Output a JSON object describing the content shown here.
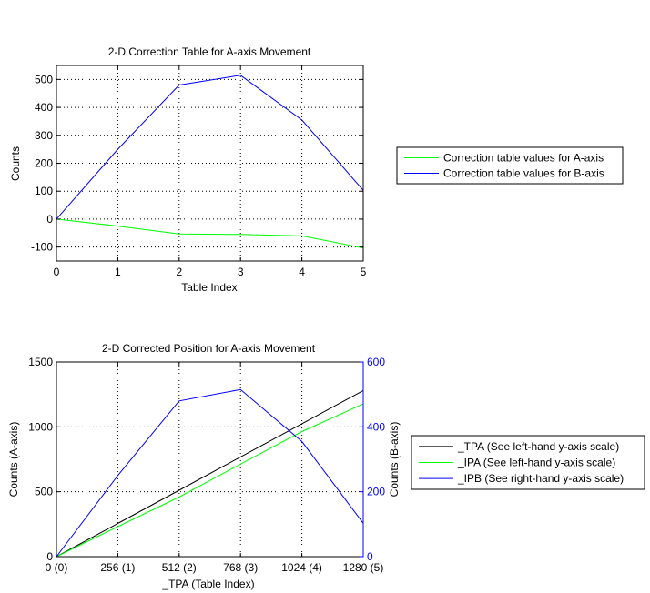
{
  "chart_data": [
    {
      "type": "line",
      "title": "2-D Correction Table for A-axis Movement",
      "xlabel": "Table Index",
      "ylabel": "Counts",
      "xlim": [
        0,
        5
      ],
      "ylim": [
        -150,
        550
      ],
      "grid": true,
      "x_ticks": [
        0,
        1,
        2,
        3,
        4,
        5
      ],
      "x_tick_labels": [
        "0",
        "1",
        "2",
        "3",
        "4",
        "5"
      ],
      "y_ticks": [
        -100,
        0,
        100,
        200,
        300,
        400,
        500
      ],
      "y_tick_labels": [
        "-100",
        "0",
        "100",
        "200",
        "300",
        "400",
        "500"
      ],
      "legend_position": "outside-right",
      "x": [
        0,
        1,
        2,
        3,
        4,
        5
      ],
      "series": [
        {
          "name": "Correction table values for A-axis",
          "color": "#00ff00",
          "values": [
            0,
            -25,
            -53,
            -55,
            -60,
            -103
          ]
        },
        {
          "name": "Correction table values for B-axis",
          "color": "#0000ff",
          "values": [
            0,
            250,
            480,
            515,
            355,
            103
          ]
        }
      ]
    },
    {
      "type": "line",
      "title": "2-D Corrected Position for A-axis Movement",
      "xlabel": "_TPA (Table Index)",
      "ylabel": "Counts (A-axis)",
      "y2label": "Counts (B-axis)",
      "xlim": [
        0,
        1280
      ],
      "ylim": [
        0,
        1500
      ],
      "y2lim": [
        0,
        600
      ],
      "grid": true,
      "x_ticks": [
        0,
        256,
        512,
        768,
        1024,
        1280
      ],
      "x_tick_labels": [
        "0 (0)",
        "256 (1)",
        "512 (2)",
        "768 (3)",
        "1024 (4)",
        "1280 (5)"
      ],
      "y_ticks": [
        0,
        500,
        1000,
        1500
      ],
      "y_tick_labels": [
        "0",
        "500",
        "1000",
        "1500"
      ],
      "y2_ticks": [
        0,
        200,
        400,
        600
      ],
      "y2_tick_labels": [
        "0",
        "200",
        "400",
        "600"
      ],
      "y2_color": "#0000ff",
      "legend_position": "outside-right",
      "x": [
        0,
        256,
        512,
        768,
        1024,
        1280
      ],
      "series": [
        {
          "name": "_TPA (See left-hand y-axis scale)",
          "color": "#000000",
          "axis": "left",
          "values": [
            0,
            256,
            512,
            768,
            1024,
            1280
          ]
        },
        {
          "name": "_IPA (See left-hand y-axis scale)",
          "color": "#00ff00",
          "axis": "left",
          "values": [
            0,
            231,
            459,
            713,
            964,
            1177
          ]
        },
        {
          "name": "_IPB (See right-hand y-axis scale)",
          "color": "#0000ff",
          "axis": "right",
          "values": [
            0,
            250,
            480,
            515,
            355,
            103
          ]
        }
      ]
    }
  ]
}
